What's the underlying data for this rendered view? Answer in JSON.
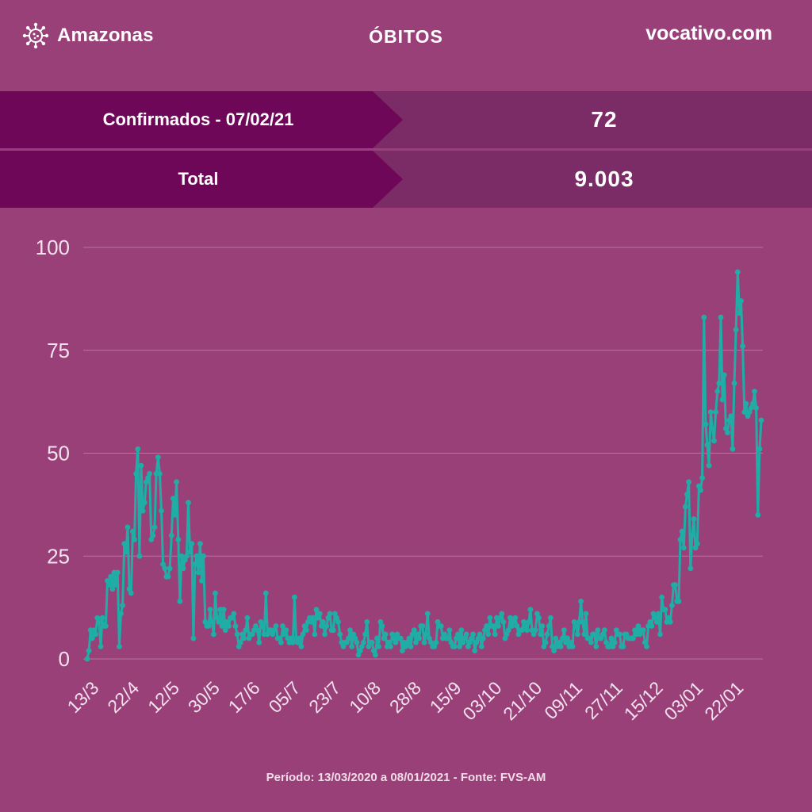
{
  "header": {
    "brand": "Amazonas",
    "title": "ÓBITOS",
    "site": "vocativo.com"
  },
  "summary": [
    {
      "label": "Confirmados - 07/02/21",
      "value": "72"
    },
    {
      "label": "Total",
      "value": "9.003"
    }
  ],
  "footer": "Período: 13/03/2020 a 08/01/2021 - Fonte: FVS-AM",
  "colors": {
    "background": "#9a4079",
    "label_box": "#6e0757",
    "value_box": "#7b2c66",
    "line": "#1fada6",
    "gridline": "#b675a1"
  },
  "chart_data": {
    "type": "line",
    "ylim": [
      0,
      100
    ],
    "yticks": [
      0,
      25,
      50,
      75,
      100
    ],
    "x_tick_labels": [
      "13/3",
      "22/4",
      "12/5",
      "30/5",
      "17/6",
      "05/7",
      "23/7",
      "10/8",
      "28/8",
      "15/9",
      "03/10",
      "21/10",
      "09/11",
      "27/11",
      "15/12",
      "03/01",
      "22/01"
    ],
    "grid": true,
    "legend": "none",
    "values": [
      0,
      2,
      7,
      5,
      7,
      6,
      10,
      9,
      3,
      10,
      8,
      8,
      19,
      18,
      20,
      17,
      21,
      18,
      21,
      3,
      11,
      13,
      28,
      26,
      32,
      17,
      16,
      31,
      29,
      45,
      51,
      25,
      47,
      36,
      38,
      43,
      44,
      45,
      29,
      30,
      32,
      45,
      49,
      45,
      36,
      23,
      22,
      20,
      20,
      22,
      30,
      39,
      35,
      43,
      29,
      14,
      25,
      22,
      24,
      25,
      38,
      26,
      28,
      5,
      23,
      25,
      21,
      28,
      19,
      25,
      9,
      8,
      8,
      12,
      9,
      6,
      16,
      10,
      9,
      12,
      8,
      12,
      7,
      9,
      8,
      10,
      10,
      11,
      8,
      6,
      3,
      4,
      6,
      5,
      7,
      10,
      5,
      6,
      6,
      7,
      8,
      7,
      4,
      9,
      8,
      6,
      16,
      6,
      7,
      7,
      6,
      7,
      8,
      5,
      5,
      4,
      8,
      6,
      7,
      5,
      4,
      5,
      4,
      15,
      5,
      4,
      5,
      3,
      6,
      8,
      7,
      9,
      10,
      9,
      10,
      6,
      12,
      10,
      11,
      8,
      9,
      6,
      8,
      10,
      11,
      7,
      7,
      11,
      10,
      9,
      6,
      4,
      3,
      4,
      4,
      5,
      7,
      3,
      6,
      5,
      4,
      1,
      2,
      3,
      4,
      6,
      9,
      3,
      4,
      4,
      2,
      1,
      5,
      3,
      9,
      8,
      5,
      6,
      3,
      4,
      3,
      6,
      5,
      4,
      6,
      5,
      5,
      2,
      4,
      3,
      4,
      5,
      3,
      6,
      7,
      4,
      6,
      5,
      8,
      8,
      4,
      6,
      11,
      5,
      4,
      3,
      3,
      4,
      9,
      8,
      8,
      5,
      6,
      5,
      5,
      7,
      4,
      3,
      3,
      5,
      6,
      3,
      7,
      4,
      5,
      6,
      3,
      4,
      5,
      6,
      2,
      4,
      5,
      6,
      3,
      5,
      7,
      8,
      6,
      10,
      8,
      8,
      6,
      10,
      8,
      10,
      11,
      9,
      5,
      6,
      7,
      10,
      8,
      9,
      10,
      8,
      6,
      7,
      7,
      9,
      8,
      7,
      9,
      12,
      7,
      6,
      7,
      11,
      10,
      6,
      8,
      3,
      4,
      6,
      8,
      10,
      3,
      2,
      5,
      3,
      4,
      3,
      5,
      7,
      4,
      5,
      3,
      4,
      3,
      9,
      8,
      6,
      9,
      14,
      9,
      6,
      11,
      5,
      5,
      4,
      6,
      6,
      3,
      7,
      5,
      5,
      6,
      7,
      4,
      3,
      3,
      5,
      3,
      4,
      7,
      6,
      6,
      3,
      3,
      6,
      6,
      5,
      5,
      5,
      5,
      7,
      6,
      8,
      6,
      7,
      7,
      4,
      3,
      8,
      9,
      8,
      11,
      10,
      9,
      11,
      6,
      15,
      12,
      12,
      9,
      10,
      9,
      13,
      18,
      18,
      14,
      14,
      29,
      31,
      27,
      37,
      40,
      43,
      22,
      30,
      34,
      27,
      28,
      42,
      41,
      44,
      83,
      57,
      52,
      47,
      60,
      56,
      53,
      60,
      65,
      67,
      83,
      63,
      69,
      56,
      55,
      58,
      59,
      51,
      67,
      80,
      94,
      84,
      87,
      76,
      60,
      62,
      59,
      60,
      61,
      62,
      65,
      61,
      35,
      51,
      58
    ]
  }
}
